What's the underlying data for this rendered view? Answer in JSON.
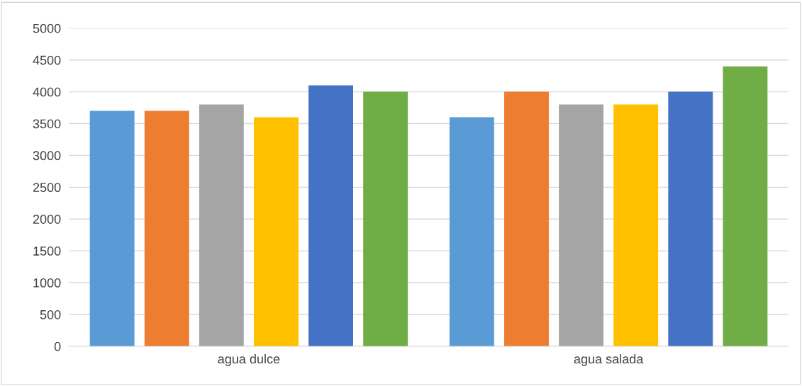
{
  "chart_data": {
    "type": "bar",
    "categories": [
      "agua dulce",
      "agua salada"
    ],
    "series": [
      {
        "color": "#5b9bd5",
        "values": [
          3700,
          3600
        ]
      },
      {
        "color": "#ed7d31",
        "values": [
          3700,
          4000
        ]
      },
      {
        "color": "#a5a5a5",
        "values": [
          3800,
          3800
        ]
      },
      {
        "color": "#ffc000",
        "values": [
          3600,
          3800
        ]
      },
      {
        "color": "#4472c4",
        "values": [
          4100,
          4000
        ]
      },
      {
        "color": "#70ad47",
        "values": [
          4000,
          4400
        ]
      }
    ],
    "ylim": [
      0,
      5000
    ],
    "yticks": [
      0,
      500,
      1000,
      1500,
      2000,
      2500,
      3000,
      3500,
      4000,
      4500,
      5000
    ],
    "grid": "y"
  }
}
